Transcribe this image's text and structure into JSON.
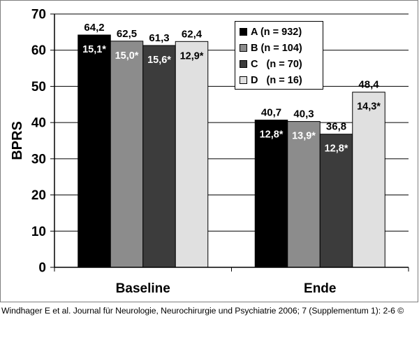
{
  "chart_data": {
    "type": "bar",
    "ylabel": "BPRS",
    "xlabel": "",
    "ylim": [
      0,
      70
    ],
    "yticks": [
      0,
      10,
      20,
      30,
      40,
      50,
      60,
      70
    ],
    "categories": [
      "Baseline",
      "Ende"
    ],
    "series": [
      {
        "name": "A (n = 932)",
        "color": "#000000",
        "values": [
          64.2,
          40.7
        ],
        "value_labels": [
          "64,2",
          "40,7"
        ],
        "sd_labels": [
          "15,1*",
          "12,8*"
        ]
      },
      {
        "name": "B (n = 104)",
        "color": "#8c8c8c",
        "values": [
          62.5,
          40.3
        ],
        "value_labels": [
          "62,5",
          "40,3"
        ],
        "sd_labels": [
          "15,0*",
          "13,9*"
        ]
      },
      {
        "name": "C   (n = 70)",
        "color": "#3c3c3c",
        "values": [
          61.3,
          36.8
        ],
        "value_labels": [
          "61,3",
          "36,8"
        ],
        "sd_labels": [
          "15,6*",
          "12,8*"
        ]
      },
      {
        "name": "D   (n = 16)",
        "color": "#e0e0e0",
        "values": [
          62.4,
          48.4
        ],
        "value_labels": [
          "62,4",
          "48,4"
        ],
        "sd_labels": [
          "12,9*",
          "14,3*"
        ]
      }
    ],
    "legend_position": "top-right",
    "grid": true
  },
  "citation": "Windhager E et al. Journal für Neurologie, Neurochirurgie und Psychiatrie 2006; 7 (Supplementum 1): 2-6 ©"
}
